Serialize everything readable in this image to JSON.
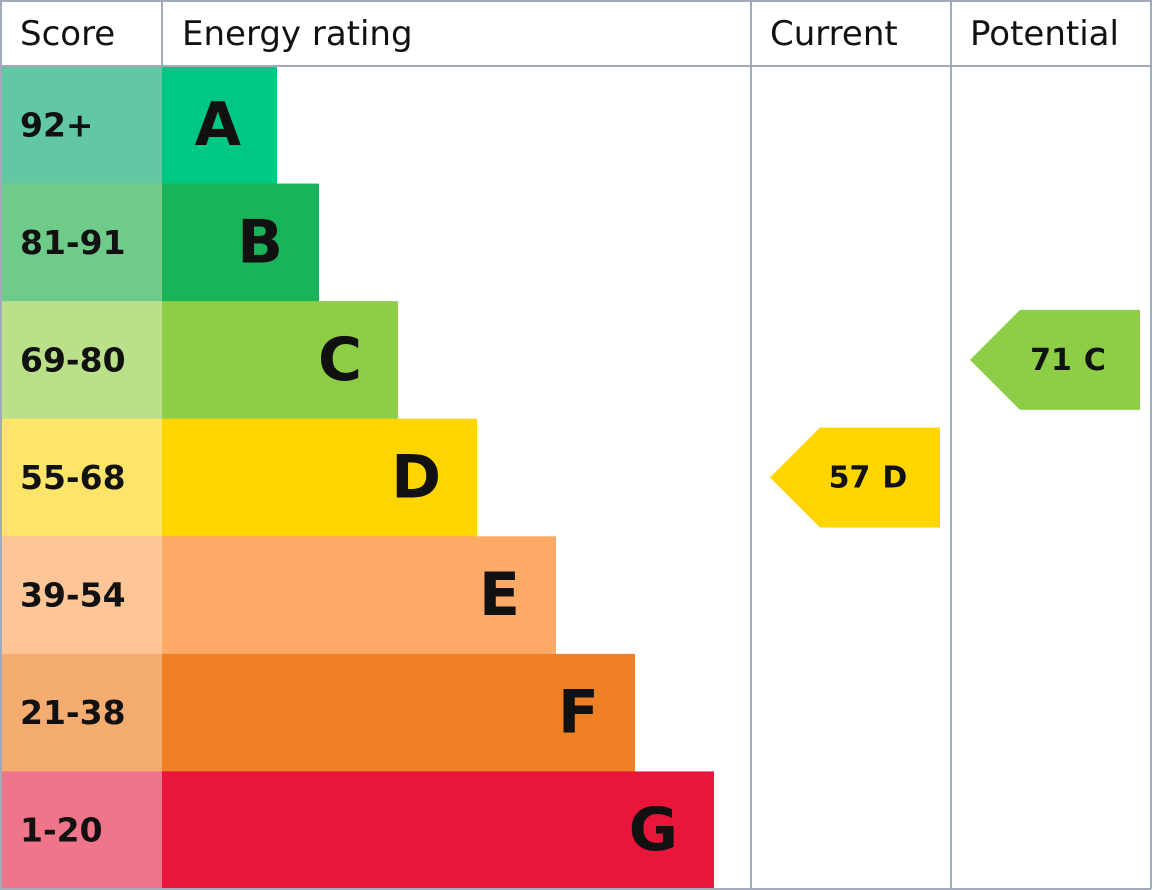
{
  "header": {
    "score": "Score",
    "rating": "Energy rating",
    "current": "Current",
    "potential": "Potential"
  },
  "rows": [
    {
      "score": "92+",
      "rating": "A",
      "color": "#00c781",
      "score_color": "#62c8a3"
    },
    {
      "score": "81-91",
      "rating": "B",
      "color": "#19b459",
      "score_color": "#6fcb8a"
    },
    {
      "score": "69-80",
      "rating": "C",
      "color": "#8dce46",
      "score_color": "#bbe08a"
    },
    {
      "score": "55-68",
      "rating": "D",
      "color": "#ffd500",
      "score_color": "#ffe46a"
    },
    {
      "score": "39-54",
      "rating": "E",
      "color": "#fcaa65",
      "score_color": "#fec597"
    },
    {
      "score": "21-38",
      "rating": "F",
      "color": "#ef8023",
      "score_color": "#f4ac70"
    },
    {
      "score": "1-20",
      "rating": "G",
      "color": "#e9153b",
      "score_color": "#f0758a"
    }
  ],
  "current": {
    "score": 57,
    "rating": "D"
  },
  "potential": {
    "score": 71,
    "rating": "C"
  }
}
